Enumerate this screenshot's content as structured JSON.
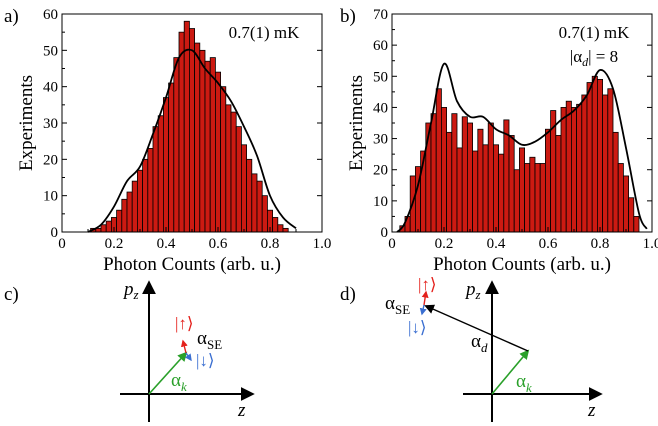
{
  "panels": {
    "a": "a)",
    "b": "b)",
    "c": "c)",
    "d": "d)"
  },
  "chart_data": [
    {
      "type": "bar",
      "panel": "a",
      "annotation": "0.7(1) mK",
      "xlabel": "Photon Counts (arb. u.)",
      "ylabel": "Experiments",
      "xlim": [
        0,
        1.0
      ],
      "ylim": [
        0,
        60
      ],
      "xticks": [
        "0",
        "0.2",
        "0.4",
        "0.6",
        "0.8",
        "1.0"
      ],
      "yticks": [
        "0",
        "10",
        "20",
        "30",
        "40",
        "50",
        "60"
      ],
      "bar_color": "#cc1a12",
      "bin_width": 0.02,
      "bin_centers": [
        0.12,
        0.14,
        0.16,
        0.18,
        0.2,
        0.22,
        0.24,
        0.26,
        0.28,
        0.3,
        0.32,
        0.34,
        0.36,
        0.38,
        0.4,
        0.42,
        0.44,
        0.46,
        0.48,
        0.5,
        0.52,
        0.54,
        0.56,
        0.58,
        0.6,
        0.62,
        0.64,
        0.66,
        0.68,
        0.7,
        0.72,
        0.74,
        0.76,
        0.78,
        0.8,
        0.82,
        0.84,
        0.86
      ],
      "values": [
        1,
        1,
        2,
        3,
        4,
        6,
        9,
        11,
        14,
        17,
        20,
        23,
        29,
        32,
        37,
        41,
        48,
        55,
        58,
        56,
        52,
        50,
        47,
        48,
        44,
        40,
        35,
        33,
        29,
        24,
        20,
        16,
        14,
        10,
        6,
        4,
        2,
        1
      ],
      "fit_curve": {
        "x": [
          0.1,
          0.15,
          0.2,
          0.25,
          0.3,
          0.35,
          0.4,
          0.45,
          0.5,
          0.55,
          0.6,
          0.65,
          0.7,
          0.75,
          0.8,
          0.85,
          0.9
        ],
        "y": [
          0,
          2,
          7,
          14,
          18,
          27,
          37,
          48,
          50,
          45,
          41,
          36,
          29,
          21,
          10,
          4,
          1
        ]
      }
    },
    {
      "type": "bar",
      "panel": "b",
      "annotation": "0.7(1) mK",
      "annotation2": "|αd| = 8",
      "xlabel": "Photon Counts  (arb. u.)",
      "ylabel": "Experiments",
      "xlim": [
        0,
        1.0
      ],
      "ylim": [
        0,
        70
      ],
      "xticks": [
        "0",
        "0.2",
        "0.4",
        "0.6",
        "0.8",
        "1.0"
      ],
      "yticks": [
        "0",
        "10",
        "20",
        "30",
        "40",
        "50",
        "60",
        "70"
      ],
      "bar_color": "#cc1a12",
      "bin_width": 0.02,
      "bin_centers": [
        0.04,
        0.06,
        0.08,
        0.1,
        0.12,
        0.14,
        0.16,
        0.18,
        0.2,
        0.22,
        0.24,
        0.26,
        0.28,
        0.3,
        0.32,
        0.34,
        0.36,
        0.38,
        0.4,
        0.42,
        0.44,
        0.46,
        0.48,
        0.5,
        0.52,
        0.54,
        0.56,
        0.58,
        0.6,
        0.62,
        0.64,
        0.66,
        0.68,
        0.7,
        0.72,
        0.74,
        0.76,
        0.78,
        0.8,
        0.82,
        0.84,
        0.86,
        0.88,
        0.9,
        0.92,
        0.94
      ],
      "values": [
        2,
        5,
        18,
        21,
        26,
        35,
        38,
        46,
        40,
        32,
        38,
        27,
        37,
        35,
        26,
        33,
        28,
        35,
        28,
        25,
        36,
        31,
        20,
        27,
        22,
        24,
        22,
        22,
        33,
        39,
        31,
        40,
        42,
        40,
        41,
        44,
        48,
        50,
        49,
        44,
        46,
        32,
        22,
        18,
        11,
        5
      ],
      "fit_curve": {
        "x": [
          0.02,
          0.05,
          0.1,
          0.15,
          0.2,
          0.25,
          0.3,
          0.35,
          0.4,
          0.45,
          0.5,
          0.55,
          0.6,
          0.65,
          0.7,
          0.75,
          0.8,
          0.85,
          0.9,
          0.95,
          0.98
        ],
        "y": [
          0,
          3,
          15,
          35,
          54,
          42,
          37,
          37,
          33,
          31,
          28,
          29,
          32,
          36,
          39,
          44,
          52,
          46,
          27,
          6,
          1
        ]
      }
    }
  ],
  "diagram_c": {
    "axis_y": "p_z",
    "axis_x": "z",
    "alpha_k": "α_k",
    "alpha_se": "α_SE",
    "ket_up": "|↑⟩",
    "ket_down": "|↓⟩",
    "colors": {
      "alpha_k": "#2aa02a",
      "up": "#e4211c",
      "down": "#3b6fd1"
    }
  },
  "diagram_d": {
    "axis_y": "p_z",
    "axis_x": "z",
    "alpha_k": "α_k",
    "alpha_d": "α_d",
    "alpha_se": "α_SE",
    "ket_up": "|↑⟩",
    "ket_down": "|↓⟩",
    "colors": {
      "alpha_k": "#2aa02a",
      "up": "#e4211c",
      "down": "#3b6fd1"
    }
  }
}
